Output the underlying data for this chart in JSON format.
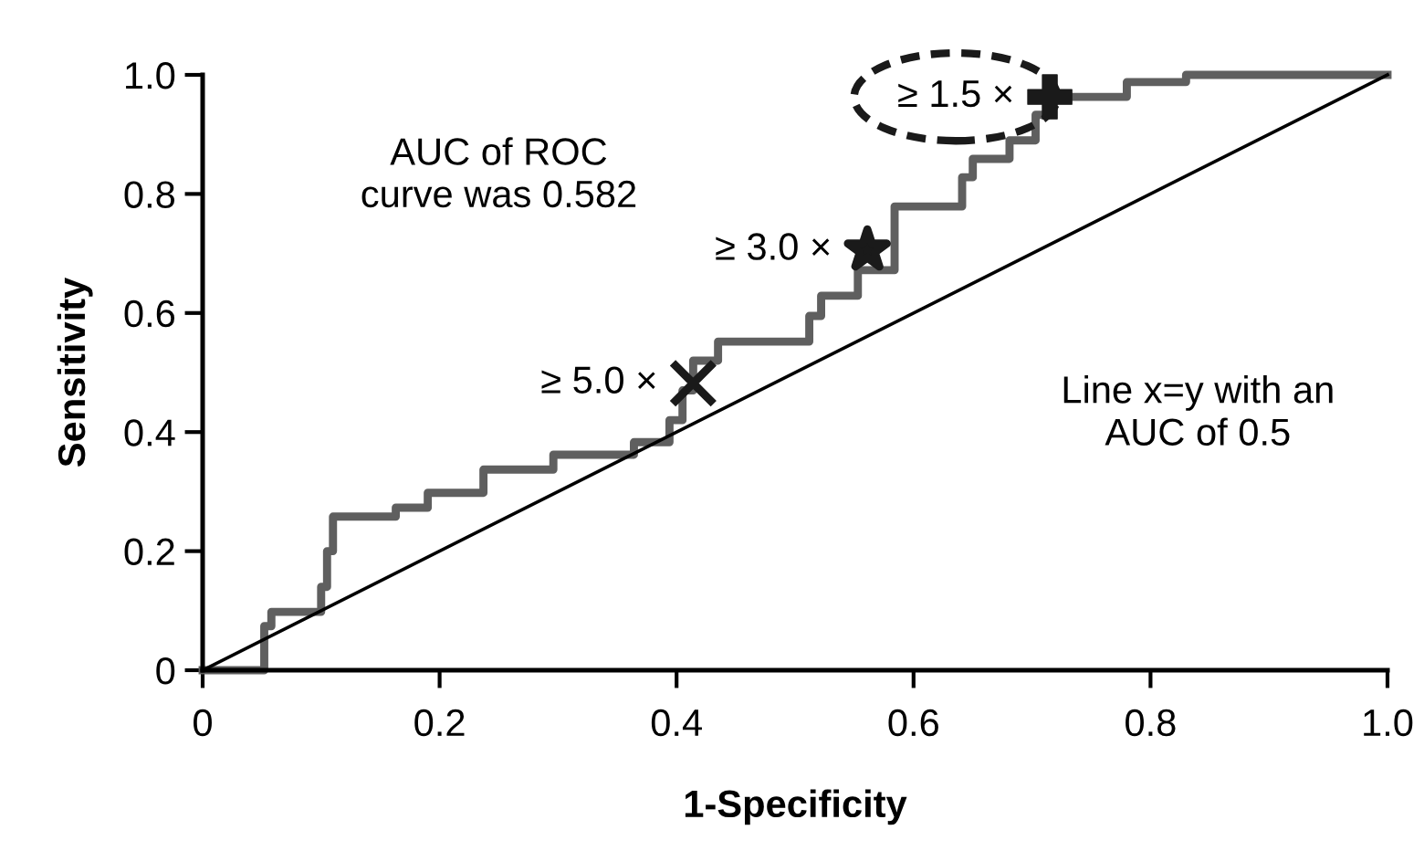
{
  "chart_data": {
    "type": "line",
    "xlabel": "1-Specificity",
    "ylabel": "Sensitivity",
    "xlim": [
      0,
      1
    ],
    "ylim": [
      0,
      1
    ],
    "xticks": [
      0,
      0.2,
      0.4,
      0.6,
      0.8,
      {
        "value": 1,
        "label": "1.0"
      }
    ],
    "yticks": [
      0,
      0.2,
      0.4,
      0.6,
      0.8,
      {
        "value": 1,
        "label": "1.0"
      }
    ],
    "grid": false,
    "legend": false,
    "series": [
      {
        "color": "#5f5f5f",
        "x": [
          0,
          0.052,
          0.052,
          0.058,
          0.058,
          0.1,
          0.1,
          0.105,
          0.105,
          0.11,
          0.11,
          0.118,
          0.118,
          0.163,
          0.163,
          0.19,
          0.19,
          0.237,
          0.237,
          0.296,
          0.296,
          0.364,
          0.364,
          0.394,
          0.394,
          0.405,
          0.405,
          0.414,
          0.414,
          0.435,
          0.435,
          0.512,
          0.512,
          0.522,
          0.522,
          0.553,
          0.553,
          0.584,
          0.584,
          0.641,
          0.641,
          0.65,
          0.65,
          0.681,
          0.681,
          0.703,
          0.703,
          0.712,
          0.712,
          0.78,
          0.78,
          0.83,
          0.83,
          1
        ],
        "values": [
          0,
          0,
          0.074,
          0.074,
          0.098,
          0.098,
          0.14,
          0.14,
          0.2,
          0.2,
          0.258,
          0.258,
          0.258,
          0.258,
          0.273,
          0.273,
          0.298,
          0.298,
          0.337,
          0.337,
          0.362,
          0.362,
          0.383,
          0.383,
          0.42,
          0.42,
          0.47,
          0.47,
          0.52,
          0.52,
          0.552,
          0.552,
          0.595,
          0.595,
          0.629,
          0.629,
          0.672,
          0.672,
          0.779,
          0.779,
          0.828,
          0.828,
          0.859,
          0.859,
          0.89,
          0.89,
          0.933,
          0.933,
          0.963,
          0.963,
          0.988,
          0.988,
          1,
          1
        ]
      },
      {
        "type": "line",
        "color": "#000000",
        "x": [
          0,
          1
        ],
        "values": [
          0,
          1
        ]
      },
      {
        "type": "scatter",
        "color": "#1a1a1a",
        "marker": "x",
        "x": [
          0.414
        ],
        "values": [
          0.482
        ]
      },
      {
        "type": "scatter",
        "color": "#1a1a1a",
        "marker": "star",
        "x": [
          0.561
        ],
        "values": [
          0.706
        ]
      },
      {
        "type": "scatter",
        "color": "#1a1a1a",
        "marker": "cross",
        "x": [
          0.715
        ],
        "values": [
          0.963
        ]
      }
    ],
    "annotations": [
      "AUC of ROC\ncurve was 0.582",
      "Line x=y with an\nAUC of 0.5",
      {
        "text": "≥ 5.0 ×",
        "x": 0.414,
        "y": 0.482
      },
      {
        "text": "≥ 3.0 ×",
        "x": 0.561,
        "y": 0.706
      },
      {
        "text": "≥ 1.5 ×",
        "x": 0.715,
        "y": 0.963
      }
    ]
  }
}
